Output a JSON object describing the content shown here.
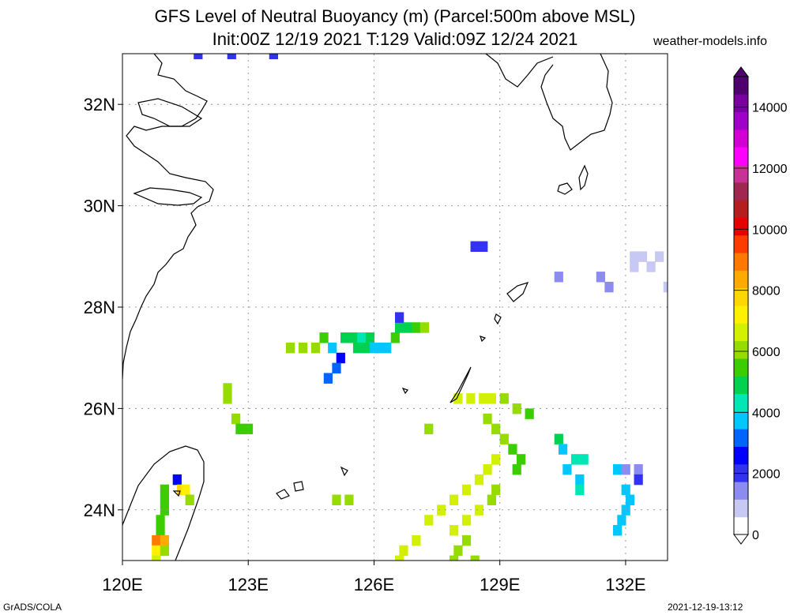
{
  "title": {
    "line1": "GFS Level of Neutral Buoyancy (m) (Parcel:500m above MSL)",
    "line2": "Init:00Z 12/19 2021 T:129 Valid:09Z 12/24 2021",
    "site": "weather-models.info"
  },
  "footer": {
    "left": "GrADS/COLA",
    "right": "2021-12-19-13:12"
  },
  "map": {
    "lon_range": [
      120.0,
      133.0
    ],
    "lat_range": [
      23.0,
      33.0
    ],
    "lat_labels": [
      "24N",
      "26N",
      "28N",
      "30N",
      "32N"
    ],
    "lat_values": [
      24,
      26,
      28,
      30,
      32
    ],
    "lon_labels": [
      "120E",
      "123E",
      "126E",
      "129E",
      "132E"
    ],
    "lon_values": [
      120,
      123,
      126,
      129,
      132
    ],
    "grid": true
  },
  "colorbar": {
    "labels": [
      "0",
      "2000",
      "4000",
      "6000",
      "8000",
      "10000",
      "12000",
      "14000"
    ],
    "values": [
      0,
      2000,
      4000,
      6000,
      8000,
      10000,
      12000,
      14000
    ],
    "range": [
      0,
      15000
    ],
    "colors": [
      "#ffffff",
      "#c8c8f5",
      "#8c8cf0",
      "#3232f0",
      "#0000ff",
      "#0064ff",
      "#00c8ff",
      "#00e6b4",
      "#00d250",
      "#3ccd00",
      "#96dc00",
      "#d2f000",
      "#fff000",
      "#ffd700",
      "#ffaa00",
      "#ff7800",
      "#ff3c00",
      "#e60000",
      "#b41e1e",
      "#a02850",
      "#c83296",
      "#ff00ff",
      "#d200d2",
      "#a000c8",
      "#7800a0",
      "#50006e"
    ]
  },
  "field_cells": [
    [
      121.8,
      33.0,
      1800
    ],
    [
      122.6,
      33.0,
      1800
    ],
    [
      123.6,
      33.0,
      2000
    ],
    [
      128.4,
      29.2,
      2200
    ],
    [
      128.6,
      29.2,
      2200
    ],
    [
      130.4,
      28.6,
      1200
    ],
    [
      131.4,
      28.6,
      1200
    ],
    [
      131.6,
      28.4,
      1200
    ],
    [
      132.2,
      29.0,
      1000
    ],
    [
      132.4,
      29.0,
      1000
    ],
    [
      132.8,
      29.0,
      1000
    ],
    [
      132.2,
      28.8,
      1000
    ],
    [
      132.6,
      28.8,
      1000
    ],
    [
      133.0,
      28.4,
      1000
    ],
    [
      124.0,
      27.2,
      6000
    ],
    [
      124.3,
      27.2,
      6000
    ],
    [
      124.6,
      27.2,
      6000
    ],
    [
      124.8,
      27.4,
      5500
    ],
    [
      125.0,
      27.2,
      3600
    ],
    [
      125.2,
      27.0,
      2500
    ],
    [
      125.1,
      26.8,
      3000
    ],
    [
      124.9,
      26.6,
      3200
    ],
    [
      125.3,
      27.4,
      5000
    ],
    [
      125.5,
      27.4,
      5000
    ],
    [
      125.7,
      27.4,
      4500
    ],
    [
      125.9,
      27.4,
      5000
    ],
    [
      125.6,
      27.2,
      5000
    ],
    [
      125.8,
      27.2,
      5000
    ],
    [
      126.0,
      27.2,
      4000
    ],
    [
      126.1,
      27.2,
      3500
    ],
    [
      126.3,
      27.2,
      3800
    ],
    [
      126.5,
      27.4,
      5200
    ],
    [
      126.6,
      27.6,
      5000
    ],
    [
      126.8,
      27.6,
      4800
    ],
    [
      127.0,
      27.6,
      5500
    ],
    [
      127.2,
      27.6,
      6000
    ],
    [
      126.6,
      27.8,
      2000
    ],
    [
      122.5,
      26.4,
      6200
    ],
    [
      122.5,
      26.2,
      6200
    ],
    [
      122.7,
      25.8,
      6000
    ],
    [
      122.8,
      25.6,
      5600
    ],
    [
      123.0,
      25.6,
      5300
    ],
    [
      127.3,
      25.6,
      6200
    ],
    [
      128.0,
      26.2,
      6400
    ],
    [
      128.3,
      26.2,
      6400
    ],
    [
      128.6,
      26.2,
      6500
    ],
    [
      128.8,
      26.2,
      6500
    ],
    [
      129.1,
      26.2,
      6200
    ],
    [
      129.4,
      26.0,
      6000
    ],
    [
      129.7,
      25.9,
      5200
    ],
    [
      128.7,
      25.8,
      6300
    ],
    [
      128.9,
      25.6,
      6300
    ],
    [
      129.1,
      25.4,
      6000
    ],
    [
      129.3,
      25.2,
      5500
    ],
    [
      129.5,
      25.0,
      5400
    ],
    [
      129.4,
      24.8,
      5200
    ],
    [
      128.9,
      25.0,
      6600
    ],
    [
      128.7,
      24.8,
      6700
    ],
    [
      128.5,
      24.6,
      6800
    ],
    [
      128.2,
      24.4,
      6800
    ],
    [
      127.9,
      24.2,
      6800
    ],
    [
      127.6,
      24.0,
      6800
    ],
    [
      127.3,
      23.8,
      6800
    ],
    [
      128.9,
      24.4,
      6300
    ],
    [
      128.8,
      24.2,
      6000
    ],
    [
      128.5,
      24.0,
      6500
    ],
    [
      128.2,
      23.8,
      6700
    ],
    [
      127.9,
      23.6,
      6500
    ],
    [
      127.0,
      23.4,
      6700
    ],
    [
      126.7,
      23.2,
      6700
    ],
    [
      126.6,
      23.0,
      6700
    ],
    [
      128.2,
      23.4,
      6000
    ],
    [
      128.0,
      23.2,
      6200
    ],
    [
      127.9,
      23.0,
      6200
    ],
    [
      128.4,
      23.0,
      6000
    ],
    [
      130.4,
      25.4,
      5000
    ],
    [
      130.5,
      25.2,
      3800
    ],
    [
      130.8,
      25.0,
      4200
    ],
    [
      130.6,
      24.8,
      3500
    ],
    [
      131.0,
      25.0,
      4500
    ],
    [
      130.9,
      24.6,
      4000
    ],
    [
      130.9,
      24.4,
      4200
    ],
    [
      131.8,
      24.8,
      3500
    ],
    [
      132.0,
      24.8,
      1500
    ],
    [
      132.3,
      24.8,
      1500
    ],
    [
      132.3,
      24.6,
      1800
    ],
    [
      132.0,
      24.4,
      3500
    ],
    [
      132.1,
      24.2,
      3600
    ],
    [
      132.0,
      24.0,
      3800
    ],
    [
      131.9,
      23.8,
      3500
    ],
    [
      131.8,
      23.6,
      3600
    ],
    [
      125.1,
      24.2,
      6300
    ],
    [
      125.4,
      24.2,
      6300
    ],
    [
      121.0,
      24.4,
      5500
    ],
    [
      121.0,
      24.2,
      5500
    ],
    [
      121.0,
      24.0,
      5500
    ],
    [
      120.9,
      23.8,
      5500
    ],
    [
      120.9,
      23.6,
      5200
    ],
    [
      121.3,
      24.6,
      2500
    ],
    [
      121.4,
      24.4,
      8000
    ],
    [
      121.5,
      24.4,
      7000
    ],
    [
      121.6,
      24.2,
      6000
    ],
    [
      120.8,
      23.4,
      9000
    ],
    [
      121.0,
      23.4,
      8500
    ],
    [
      120.8,
      23.2,
      7000
    ],
    [
      121.0,
      23.2,
      6000
    ],
    [
      120.8,
      23.0,
      6500
    ]
  ]
}
